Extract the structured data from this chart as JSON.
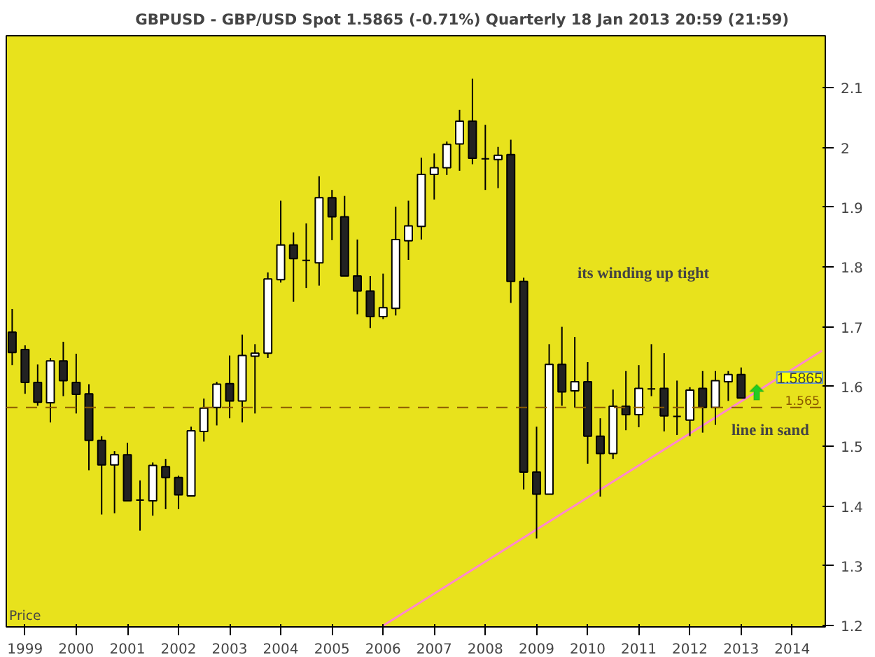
{
  "chart_data": {
    "type": "candlestick",
    "title": "GBPUSD - GBP/USD Spot    1.5865 (-0.71%)    Quarterly  18 Jan 2013 20:59 (21:59)",
    "ylabel": "Price",
    "x": [
      "1998-10",
      "1999-01",
      "1999-04",
      "1999-07",
      "1999-10",
      "2000-01",
      "2000-04",
      "2000-07",
      "2000-10",
      "2001-01",
      "2001-04",
      "2001-07",
      "2001-10",
      "2002-01",
      "2002-04",
      "2002-07",
      "2002-10",
      "2003-01",
      "2003-04",
      "2003-07",
      "2003-10",
      "2004-01",
      "2004-04",
      "2004-07",
      "2004-10",
      "2005-01",
      "2005-04",
      "2005-07",
      "2005-10",
      "2006-01",
      "2006-04",
      "2006-07",
      "2006-10",
      "2007-01",
      "2007-04",
      "2007-07",
      "2007-10",
      "2008-01",
      "2008-04",
      "2008-07",
      "2008-10",
      "2009-01",
      "2009-04",
      "2009-07",
      "2009-10",
      "2010-01",
      "2010-04",
      "2010-07",
      "2010-10",
      "2011-01",
      "2011-04",
      "2011-07",
      "2011-10",
      "2012-01",
      "2012-04",
      "2012-07",
      "2012-10",
      "2013-01"
    ],
    "ohlc": [
      [
        1.691,
        1.73,
        1.636,
        1.657
      ],
      [
        1.662,
        1.669,
        1.588,
        1.607
      ],
      [
        1.607,
        1.637,
        1.568,
        1.574
      ],
      [
        1.573,
        1.648,
        1.54,
        1.643
      ],
      [
        1.643,
        1.675,
        1.584,
        1.61
      ],
      [
        1.607,
        1.655,
        1.555,
        1.587
      ],
      [
        1.588,
        1.604,
        1.46,
        1.51
      ],
      [
        1.51,
        1.517,
        1.386,
        1.469
      ],
      [
        1.469,
        1.492,
        1.388,
        1.486
      ],
      [
        1.486,
        1.506,
        1.408,
        1.409
      ],
      [
        1.41,
        1.443,
        1.359,
        1.41
      ],
      [
        1.409,
        1.473,
        1.384,
        1.468
      ],
      [
        1.466,
        1.479,
        1.395,
        1.448
      ],
      [
        1.448,
        1.451,
        1.395,
        1.419
      ],
      [
        1.417,
        1.533,
        1.417,
        1.526
      ],
      [
        1.525,
        1.58,
        1.508,
        1.564
      ],
      [
        1.565,
        1.608,
        1.535,
        1.604
      ],
      [
        1.605,
        1.652,
        1.547,
        1.576
      ],
      [
        1.576,
        1.687,
        1.54,
        1.652
      ],
      [
        1.651,
        1.671,
        1.555,
        1.656
      ],
      [
        1.656,
        1.791,
        1.648,
        1.78
      ],
      [
        1.779,
        1.911,
        1.774,
        1.837
      ],
      [
        1.837,
        1.858,
        1.742,
        1.814
      ],
      [
        1.811,
        1.873,
        1.765,
        1.811
      ],
      [
        1.807,
        1.952,
        1.769,
        1.916
      ],
      [
        1.916,
        1.929,
        1.845,
        1.884
      ],
      [
        1.884,
        1.919,
        1.785,
        1.785
      ],
      [
        1.785,
        1.846,
        1.721,
        1.76
      ],
      [
        1.76,
        1.785,
        1.698,
        1.717
      ],
      [
        1.717,
        1.789,
        1.713,
        1.732
      ],
      [
        1.731,
        1.901,
        1.719,
        1.846
      ],
      [
        1.844,
        1.911,
        1.812,
        1.869
      ],
      [
        1.868,
        1.983,
        1.846,
        1.955
      ],
      [
        1.955,
        1.99,
        1.913,
        1.966
      ],
      [
        1.966,
        2.01,
        1.954,
        2.005
      ],
      [
        2.006,
        2.063,
        1.961,
        2.044
      ],
      [
        2.044,
        2.115,
        1.972,
        1.982
      ],
      [
        1.981,
        2.038,
        1.929,
        1.981
      ],
      [
        1.98,
        2.001,
        1.932,
        1.987
      ],
      [
        1.988,
        2.013,
        1.74,
        1.776
      ],
      [
        1.776,
        1.782,
        1.428,
        1.457
      ],
      [
        1.457,
        1.533,
        1.346,
        1.42
      ],
      [
        1.42,
        1.671,
        1.42,
        1.637
      ],
      [
        1.637,
        1.7,
        1.568,
        1.591
      ],
      [
        1.593,
        1.683,
        1.565,
        1.608
      ],
      [
        1.608,
        1.641,
        1.471,
        1.517
      ],
      [
        1.517,
        1.547,
        1.416,
        1.488
      ],
      [
        1.488,
        1.595,
        1.479,
        1.567
      ],
      [
        1.567,
        1.626,
        1.527,
        1.553
      ],
      [
        1.553,
        1.636,
        1.532,
        1.597
      ],
      [
        1.596,
        1.671,
        1.584,
        1.596
      ],
      [
        1.597,
        1.656,
        1.525,
        1.551
      ],
      [
        1.55,
        1.61,
        1.519,
        1.55
      ],
      [
        1.544,
        1.599,
        1.517,
        1.594
      ],
      [
        1.597,
        1.626,
        1.523,
        1.565
      ],
      [
        1.565,
        1.626,
        1.536,
        1.61
      ],
      [
        1.608,
        1.626,
        1.576,
        1.62
      ],
      [
        1.62,
        1.632,
        1.581,
        1.581
      ]
    ],
    "series": [
      {
        "type": "line",
        "color": "#ff88cc",
        "x": [
          "2006-01",
          "2014-08"
        ],
        "values": [
          1.2,
          1.66
        ]
      }
    ],
    "xlim": [
      "1998-08-20",
      "2014-08-25"
    ],
    "ylim": [
      1.198,
      2.187
    ],
    "xticks": [
      {
        "value": "1999-01",
        "label": "1999"
      },
      {
        "value": "2000-01",
        "label": "2000"
      },
      {
        "value": "2001-01",
        "label": "2001"
      },
      {
        "value": "2002-01",
        "label": "2002"
      },
      {
        "value": "2003-01",
        "label": "2003"
      },
      {
        "value": "2004-01",
        "label": "2004"
      },
      {
        "value": "2005-01",
        "label": "2005"
      },
      {
        "value": "2006-01",
        "label": "2006"
      },
      {
        "value": "2007-01",
        "label": "2007"
      },
      {
        "value": "2008-01",
        "label": "2008"
      },
      {
        "value": "2009-01",
        "label": "2009"
      },
      {
        "value": "2010-01",
        "label": "2010"
      },
      {
        "value": "2011-01",
        "label": "2011"
      },
      {
        "value": "2012-01",
        "label": "2012"
      },
      {
        "value": "2013-01",
        "label": "2013"
      },
      {
        "value": "2014-01",
        "label": "2014"
      }
    ],
    "yticks": [
      1.2,
      1.3,
      1.4,
      1.5,
      1.6,
      1.7,
      1.8,
      1.9,
      2,
      2.1
    ],
    "ref_lines": [
      {
        "axis": "y",
        "value": 1.565,
        "label": "1.565",
        "color": "#8b5a00",
        "line_style": "dashed"
      }
    ],
    "annotations": [
      "its winding up tight",
      "line in sand",
      "1.5865"
    ],
    "grid": false
  }
}
